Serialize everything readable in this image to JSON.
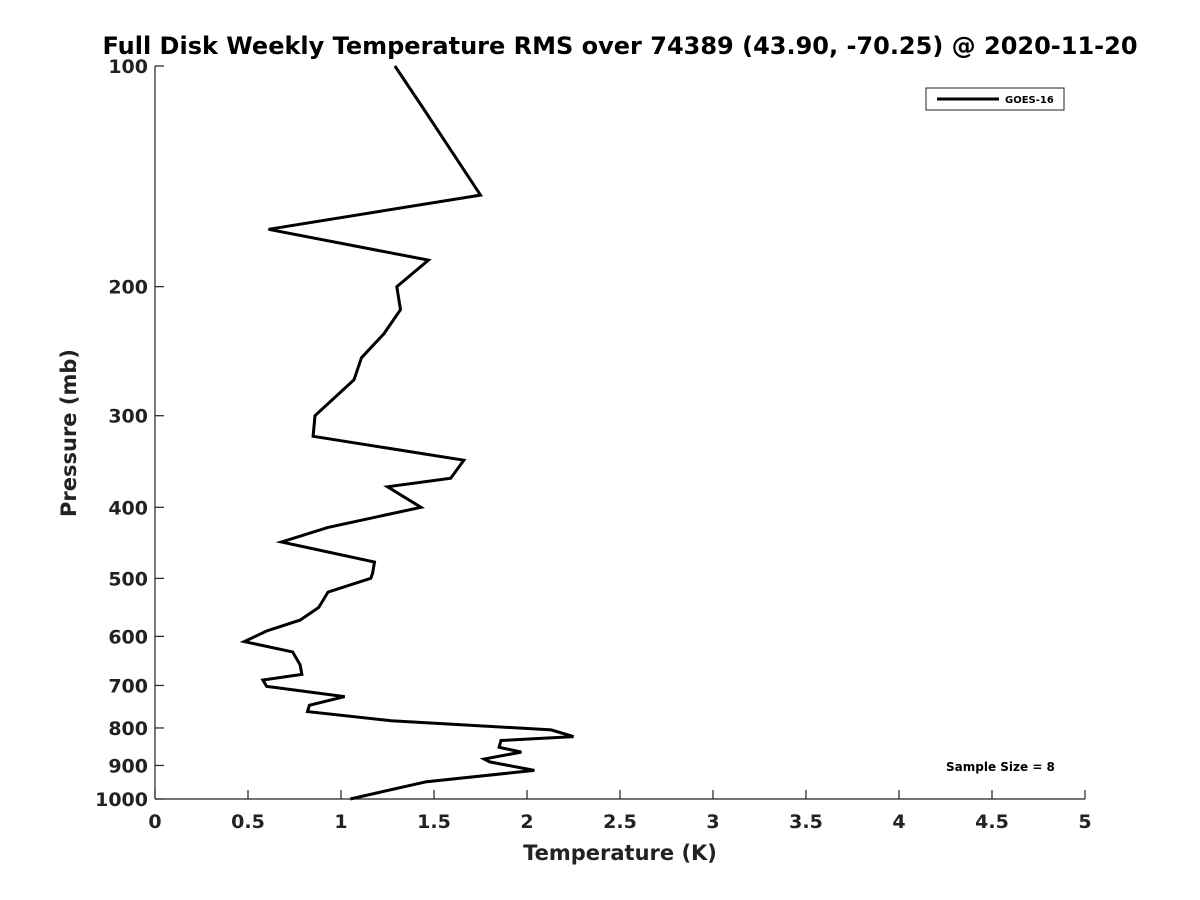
{
  "chart_data": {
    "type": "line",
    "title": "Full Disk Weekly Temperature RMS over 74389 (43.90, -70.25) @ 2020-11-20",
    "xlabel": "Temperature (K)",
    "ylabel": "Pressure (mb)",
    "xlim": [
      0,
      5
    ],
    "ylim": [
      100,
      1000
    ],
    "y_scale": "log",
    "y_reversed": true,
    "x_ticks": [
      "0",
      "0.5",
      "1",
      "1.5",
      "2",
      "2.5",
      "3",
      "3.5",
      "4",
      "4.5",
      "5"
    ],
    "y_ticks": [
      "100",
      "200",
      "300",
      "400",
      "500",
      "600",
      "700",
      "800",
      "900",
      "1000"
    ],
    "grid": false,
    "legend_position": "top-right",
    "annotation": "Sample Size = 8",
    "series": [
      {
        "name": "GOES-16",
        "color": "#000000",
        "x": [
          1.29,
          1.45,
          1.75,
          0.61,
          1.47,
          1.3,
          1.32,
          1.23,
          1.11,
          1.07,
          0.86,
          0.85,
          1.66,
          1.59,
          1.25,
          1.43,
          0.93,
          0.68,
          1.18,
          1.17,
          1.16,
          0.93,
          0.88,
          0.78,
          0.6,
          0.48,
          0.74,
          0.78,
          0.79,
          0.58,
          0.6,
          1.02,
          0.83,
          0.82,
          1.27,
          2.13,
          2.25,
          1.86,
          1.85,
          1.97,
          1.77,
          1.8,
          2.04,
          1.46,
          1.2,
          1.05
        ],
        "y": [
          100,
          115,
          150,
          167,
          184,
          200,
          215,
          232,
          250,
          268,
          300,
          320,
          345,
          365,
          375,
          400,
          426,
          446,
          475,
          492,
          500,
          522,
          548,
          570,
          590,
          610,
          630,
          656,
          676,
          688,
          702,
          725,
          745,
          760,
          782,
          805,
          822,
          832,
          850,
          863,
          882,
          890,
          914,
          947,
          980,
          1000
        ]
      }
    ]
  }
}
